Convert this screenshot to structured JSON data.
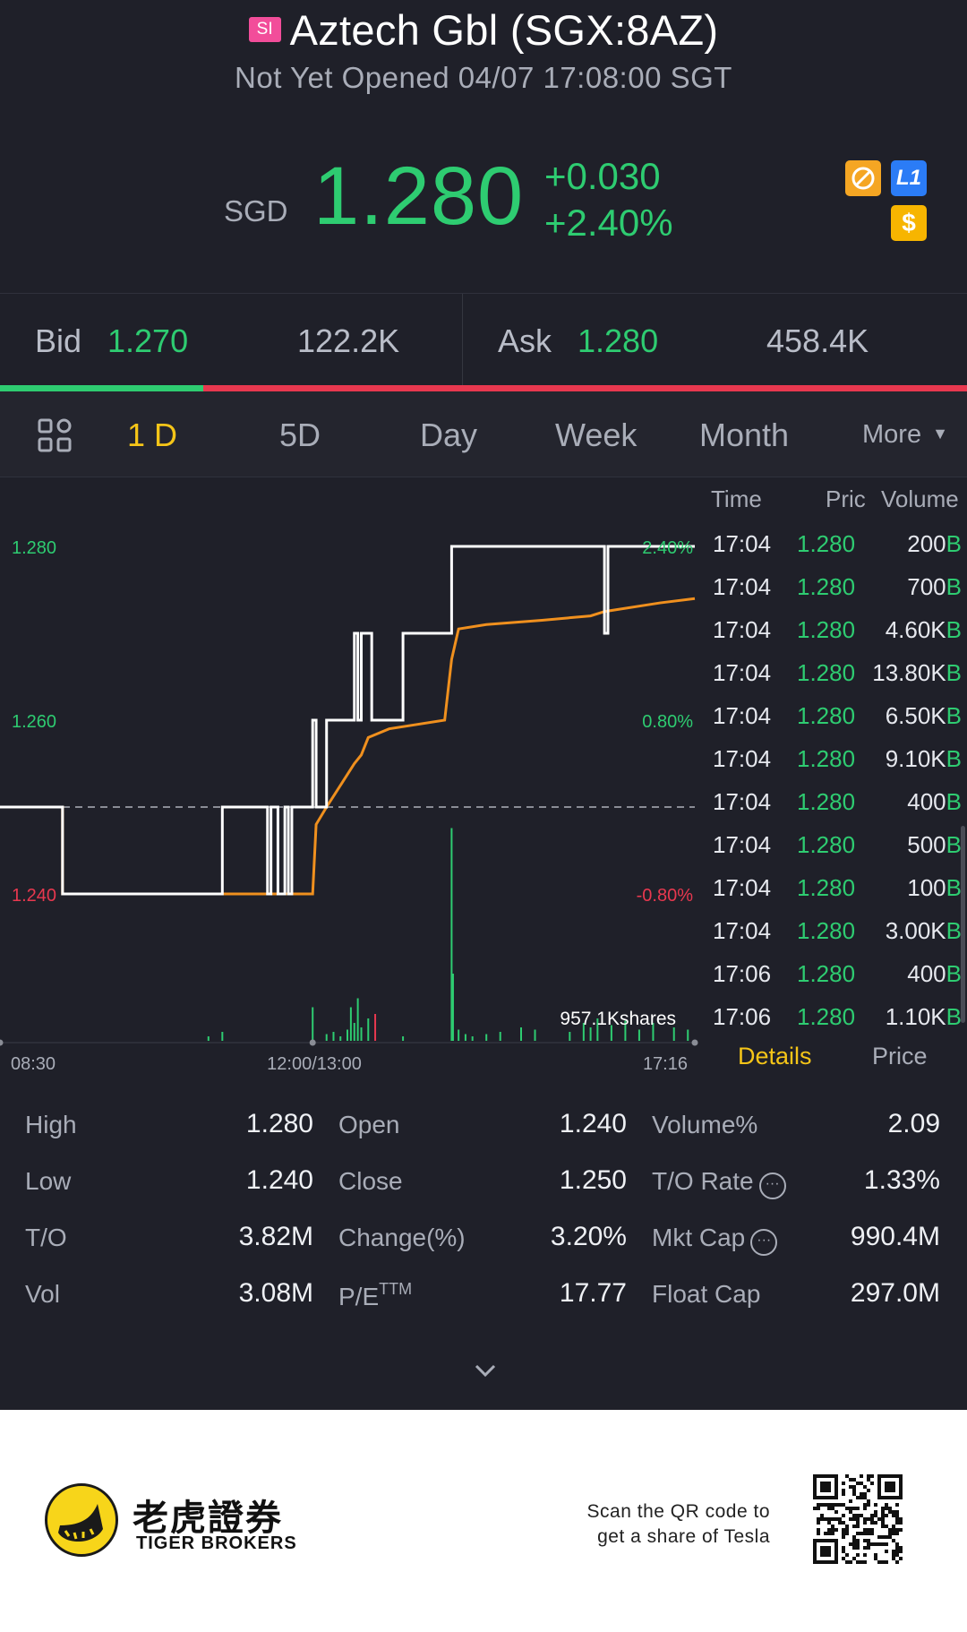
{
  "header": {
    "market_badge": "SI",
    "title": "Aztech Gbl (SGX:8AZ)",
    "status": "Not Yet Opened 04/07 17:08:00 SGT"
  },
  "quote": {
    "currency": "SGD",
    "price": "1.280",
    "change": "+0.030",
    "change_pct": "+2.40%",
    "icons": [
      "no-short-icon",
      "level1-icon",
      "dollar-icon"
    ],
    "icon_glyphs": {
      "level1": "L1",
      "dollar": "$"
    }
  },
  "bid_ask": {
    "bid_label": "Bid",
    "bid_price": "1.270",
    "bid_size": "122.2K",
    "ask_label": "Ask",
    "ask_price": "1.280",
    "ask_size": "458.4K",
    "bid_ratio": 0.21
  },
  "tabs": {
    "items": [
      "1 D",
      "5D",
      "Day",
      "Week",
      "Month"
    ],
    "active": "1 D",
    "more": "More"
  },
  "chart": {
    "y_labels": [
      {
        "text": "1.280",
        "color": "#2ecc71"
      },
      {
        "text": "1.260",
        "color": "#2ecc71"
      },
      {
        "text": "1.240",
        "color": "#e8384f"
      }
    ],
    "pct_labels": [
      {
        "text": "2.40%",
        "color": "#2ecc71"
      },
      {
        "text": "0.80%",
        "color": "#2ecc71"
      },
      {
        "text": "-0.80%",
        "color": "#e8384f"
      }
    ],
    "x_labels": [
      "08:30",
      "12:00/13:00",
      "17:16"
    ],
    "volume_label": "957.1Kshares",
    "prev_close": 1.25,
    "ylim": [
      1.24,
      1.28
    ],
    "price_series": [
      [
        0,
        1.25
      ],
      [
        0.09,
        1.25
      ],
      [
        0.09,
        1.24
      ],
      [
        0.32,
        1.24
      ],
      [
        0.32,
        1.25
      ],
      [
        0.385,
        1.25
      ],
      [
        0.385,
        1.24
      ],
      [
        0.39,
        1.24
      ],
      [
        0.39,
        1.25
      ],
      [
        0.4,
        1.25
      ],
      [
        0.4,
        1.24
      ],
      [
        0.41,
        1.24
      ],
      [
        0.41,
        1.25
      ],
      [
        0.415,
        1.25
      ],
      [
        0.415,
        1.24
      ],
      [
        0.42,
        1.24
      ],
      [
        0.42,
        1.25
      ],
      [
        0.45,
        1.25
      ],
      [
        0.45,
        1.26
      ],
      [
        0.455,
        1.26
      ],
      [
        0.455,
        1.25
      ],
      [
        0.47,
        1.25
      ],
      [
        0.47,
        1.26
      ],
      [
        0.51,
        1.26
      ],
      [
        0.51,
        1.27
      ],
      [
        0.515,
        1.27
      ],
      [
        0.515,
        1.26
      ],
      [
        0.52,
        1.26
      ],
      [
        0.52,
        1.27
      ],
      [
        0.535,
        1.27
      ],
      [
        0.535,
        1.26
      ],
      [
        0.54,
        1.26
      ],
      [
        0.54,
        1.26
      ],
      [
        0.58,
        1.26
      ],
      [
        0.58,
        1.27
      ],
      [
        0.65,
        1.27
      ],
      [
        0.65,
        1.28
      ],
      [
        0.87,
        1.28
      ],
      [
        0.87,
        1.27
      ],
      [
        0.875,
        1.27
      ],
      [
        0.875,
        1.28
      ],
      [
        1.0,
        1.28
      ]
    ],
    "avg_series": [
      [
        0,
        1.25
      ],
      [
        0.09,
        1.25
      ],
      [
        0.09,
        1.24
      ],
      [
        0.45,
        1.24
      ],
      [
        0.455,
        1.248
      ],
      [
        0.47,
        1.25
      ],
      [
        0.51,
        1.255
      ],
      [
        0.52,
        1.256
      ],
      [
        0.53,
        1.258
      ],
      [
        0.56,
        1.259
      ],
      [
        0.64,
        1.26
      ],
      [
        0.65,
        1.267
      ],
      [
        0.66,
        1.2705
      ],
      [
        0.7,
        1.271
      ],
      [
        0.78,
        1.2715
      ],
      [
        0.85,
        1.272
      ],
      [
        0.87,
        1.2725
      ],
      [
        0.95,
        1.2735
      ],
      [
        1.0,
        1.274
      ]
    ],
    "volume_bars": [
      [
        0.3,
        0.02
      ],
      [
        0.32,
        0.04
      ],
      [
        0.45,
        0.15
      ],
      [
        0.47,
        0.03
      ],
      [
        0.48,
        0.04
      ],
      [
        0.49,
        0.02
      ],
      [
        0.5,
        0.05
      ],
      [
        0.505,
        0.15
      ],
      [
        0.51,
        0.08
      ],
      [
        0.515,
        0.19
      ],
      [
        0.52,
        0.06
      ],
      [
        0.53,
        0.1
      ],
      [
        0.54,
        0.12
      ],
      [
        0.58,
        0.02
      ],
      [
        0.65,
        0.95
      ],
      [
        0.652,
        0.3
      ],
      [
        0.66,
        0.05
      ],
      [
        0.67,
        0.03
      ],
      [
        0.68,
        0.02
      ],
      [
        0.7,
        0.03
      ],
      [
        0.72,
        0.04
      ],
      [
        0.75,
        0.06
      ],
      [
        0.77,
        0.05
      ],
      [
        0.82,
        0.04
      ],
      [
        0.84,
        0.08
      ],
      [
        0.85,
        0.06
      ],
      [
        0.86,
        0.1
      ],
      [
        0.88,
        0.07
      ],
      [
        0.9,
        0.09
      ],
      [
        0.92,
        0.05
      ],
      [
        0.94,
        0.08
      ],
      [
        0.97,
        0.06
      ],
      [
        0.99,
        0.05
      ]
    ],
    "volume_bar_red": [
      0.54
    ]
  },
  "trades": {
    "headers": [
      "Time",
      "Pric",
      "Volume"
    ],
    "rows": [
      {
        "time": "17:04",
        "price": "1.280",
        "volume": "200",
        "side": "B"
      },
      {
        "time": "17:04",
        "price": "1.280",
        "volume": "700",
        "side": "B"
      },
      {
        "time": "17:04",
        "price": "1.280",
        "volume": "4.60K",
        "side": "B"
      },
      {
        "time": "17:04",
        "price": "1.280",
        "volume": "13.80K",
        "side": "B"
      },
      {
        "time": "17:04",
        "price": "1.280",
        "volume": "6.50K",
        "side": "B"
      },
      {
        "time": "17:04",
        "price": "1.280",
        "volume": "9.10K",
        "side": "B"
      },
      {
        "time": "17:04",
        "price": "1.280",
        "volume": "400",
        "side": "B"
      },
      {
        "time": "17:04",
        "price": "1.280",
        "volume": "500",
        "side": "B"
      },
      {
        "time": "17:04",
        "price": "1.280",
        "volume": "100",
        "side": "B"
      },
      {
        "time": "17:04",
        "price": "1.280",
        "volume": "3.00K",
        "side": "B"
      },
      {
        "time": "17:06",
        "price": "1.280",
        "volume": "400",
        "side": "B"
      },
      {
        "time": "17:06",
        "price": "1.280",
        "volume": "1.10K",
        "side": "B"
      }
    ],
    "tab_details": "Details",
    "tab_price": "Price"
  },
  "stats": {
    "col1": [
      {
        "label": "High",
        "value": "1.280"
      },
      {
        "label": "Low",
        "value": "1.240"
      },
      {
        "label": "T/O",
        "value": "3.82M"
      },
      {
        "label": "Vol",
        "value": "3.08M"
      }
    ],
    "col2": [
      {
        "label": "Open",
        "value": "1.240"
      },
      {
        "label": "Close",
        "value": "1.250"
      },
      {
        "label": "Change(%)",
        "value": "3.20%"
      },
      {
        "label": "P/E",
        "sup": "TTM",
        "value": "17.77"
      }
    ],
    "col3": [
      {
        "label": "Volume%",
        "value": "2.09",
        "info": false
      },
      {
        "label": "T/O Rate",
        "value": "1.33%",
        "info": true
      },
      {
        "label": "Mkt Cap",
        "value": "990.4M",
        "info": true
      },
      {
        "label": "Float Cap",
        "value": "297.0M",
        "info": false
      }
    ],
    "info_glyph": "···"
  },
  "footer": {
    "brand_cn": "老虎證券",
    "brand_en": "TIGER BROKERS",
    "qr_line1": "Scan the QR code to",
    "qr_line2": "get a share of Tesla"
  },
  "colors": {
    "up": "#2ecc71",
    "down": "#e8384f",
    "accent": "#f5c518",
    "avg_line": "#f0901e",
    "price_line": "#ffffff"
  }
}
